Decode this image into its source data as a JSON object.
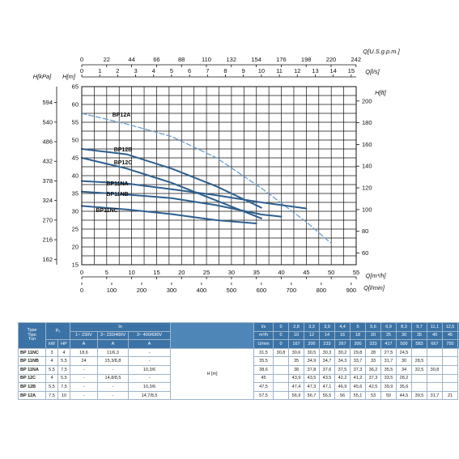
{
  "chart_data": {
    "type": "line",
    "axes": {
      "top_usgpm": {
        "label": "Q[U.S.g.p.m.]",
        "ticks": [
          "0",
          "22",
          "44",
          "66",
          "88",
          "110",
          "132",
          "154",
          "176",
          "198",
          "220",
          "242"
        ]
      },
      "top_ls": {
        "label": "Q[l/s]",
        "ticks": [
          "0",
          "1",
          "2",
          "3",
          "4",
          "5",
          "6",
          "7",
          "8",
          "9",
          "10",
          "11",
          "12",
          "13",
          "14",
          "15"
        ]
      },
      "bottom_m3h": {
        "label": "Q[m³/h]",
        "ticks": [
          "0",
          "5",
          "10",
          "15",
          "20",
          "25",
          "30",
          "35",
          "40",
          "45",
          "50",
          "55"
        ]
      },
      "bottom_lmin": {
        "label": "Q[l/min]",
        "ticks": [
          "0",
          "100",
          "200",
          "300",
          "400",
          "500",
          "600",
          "700",
          "800",
          "900"
        ]
      },
      "left_m": {
        "label": "H[m]",
        "ticks": [
          "15",
          "20",
          "25",
          "30",
          "35",
          "40",
          "45",
          "50",
          "55",
          "60",
          "65"
        ]
      },
      "left_kpa": {
        "label": "H[kPa]",
        "ticks": [
          "162",
          "216",
          "270",
          "324",
          "378",
          "432",
          "486",
          "540",
          "594"
        ]
      },
      "right_ft": {
        "label": "H[ft]",
        "ticks": [
          "60",
          "80",
          "100",
          "120",
          "140",
          "160",
          "180",
          "200"
        ]
      }
    },
    "x_unit": "m3/h",
    "xlim": [
      0,
      55
    ],
    "ylim": [
      15,
      65
    ],
    "grid": true,
    "series": [
      {
        "name": "BP12A",
        "x": [
          0,
          9,
          18,
          27,
          36,
          45,
          50
        ],
        "y": [
          57.5,
          54.5,
          51,
          45,
          36.5,
          27,
          21
        ]
      },
      {
        "name": "BP12B",
        "x": [
          0,
          9,
          18,
          27,
          36
        ],
        "y": [
          47.5,
          46,
          42,
          37,
          31
        ]
      },
      {
        "name": "BP12C",
        "x": [
          0,
          9,
          18,
          27,
          36
        ],
        "y": [
          45,
          42,
          38,
          33,
          28
        ]
      },
      {
        "name": "BP11NA",
        "x": [
          0,
          9,
          18,
          27,
          36,
          45
        ],
        "y": [
          38.5,
          37.8,
          36.2,
          34.5,
          32.5,
          30.8
        ]
      },
      {
        "name": "BP11NB",
        "x": [
          0,
          9,
          18,
          27,
          36,
          40
        ],
        "y": [
          35.5,
          34.7,
          33.7,
          31.7,
          29.1,
          28.5
        ]
      },
      {
        "name": "BP11NC",
        "x": [
          0,
          9,
          18,
          27,
          35
        ],
        "y": [
          31.5,
          30.5,
          29.2,
          27.5,
          26.6
        ]
      }
    ]
  },
  "table": {
    "head": {
      "type": "Type\nTipo\nTun",
      "p2": "P₂",
      "in": "In",
      "v1": "1~ 230V",
      "v2": "3~ 230/400V",
      "v3": "3~ 400/690V",
      "q": "Q",
      "ls": "l/s",
      "m3h": "m³/h",
      "umin": "U/min",
      "kw": "kW",
      "hp": "HP",
      "a": "A",
      "h": "H [m]"
    },
    "flow_ls": [
      "0",
      "2,8",
      "3,3",
      "3,9",
      "4,4",
      "5",
      "5,6",
      "6,9",
      "8,3",
      "9,7",
      "11,1",
      "12,5",
      "13,9"
    ],
    "flow_m3h": [
      "0",
      "10",
      "12",
      "14",
      "16",
      "18",
      "20",
      "25",
      "30",
      "35",
      "40",
      "45",
      "50"
    ],
    "flow_lmin": [
      "0",
      "167",
      "200",
      "233",
      "267",
      "300",
      "333",
      "417",
      "500",
      "583",
      "667",
      "750",
      "833"
    ],
    "rows": [
      {
        "name": "BP 11NC",
        "kw": "3",
        "hp": "4",
        "a1": "18,6",
        "a2": "11/6,3",
        "a3": "-",
        "h": [
          "31,5",
          "30,8",
          "30,6",
          "30,5",
          "30,3",
          "30,2",
          "29,8",
          "28",
          "27,5",
          "24,5",
          "",
          "",
          ""
        ]
      },
      {
        "name": "BP 11NB",
        "kw": "4",
        "hp": "5,5",
        "a1": "24",
        "a2": "15,3/8,8",
        "a3": "-",
        "h": [
          "35,5",
          "",
          "35",
          "34,9",
          "34,7",
          "34,3",
          "33,7",
          "33",
          "31,7",
          "30",
          "28,5",
          "",
          ""
        ]
      },
      {
        "name": "BP 11NA",
        "kw": "5,5",
        "hp": "7,5",
        "a1": "-",
        "a2": "-",
        "a3": "10,3/6",
        "h": [
          "38,6",
          "",
          "38",
          "37,8",
          "37,6",
          "37,5",
          "37,3",
          "36,2",
          "35,5",
          "34",
          "32,5",
          "30,8",
          ""
        ]
      },
      {
        "name": "BP 12C",
        "kw": "4",
        "hp": "5,5",
        "a1": "-",
        "a2": "14,8/8,5",
        "a3": "-",
        "h": [
          "45",
          "",
          "43,9",
          "43,5",
          "43,5",
          "42,2",
          "41,2",
          "37,3",
          "33,5",
          "28,2",
          "",
          "",
          ""
        ]
      },
      {
        "name": "BP 12B",
        "kw": "5,5",
        "hp": "7,5",
        "a1": "-",
        "a2": "-",
        "a3": "10,3/6",
        "h": [
          "47,5",
          "",
          "47,4",
          "47,3",
          "47,1",
          "46,9",
          "45,6",
          "42,5",
          "39,9",
          "35,6",
          "",
          "",
          ""
        ]
      },
      {
        "name": "BP 12A",
        "kw": "7,5",
        "hp": "10",
        "a1": "-",
        "a2": "-",
        "a3": "14,7/8,5",
        "h": [
          "57,5",
          "",
          "56,9",
          "56,7",
          "56,5",
          "56",
          "55,1",
          "53",
          "50",
          "44,5",
          "39,5",
          "31,7",
          "21"
        ]
      }
    ]
  },
  "colors": {
    "curve": "#2e5f8e",
    "curve_a": "#6b9fd0",
    "grid": "#111111",
    "table_head": "#3b73a6"
  }
}
